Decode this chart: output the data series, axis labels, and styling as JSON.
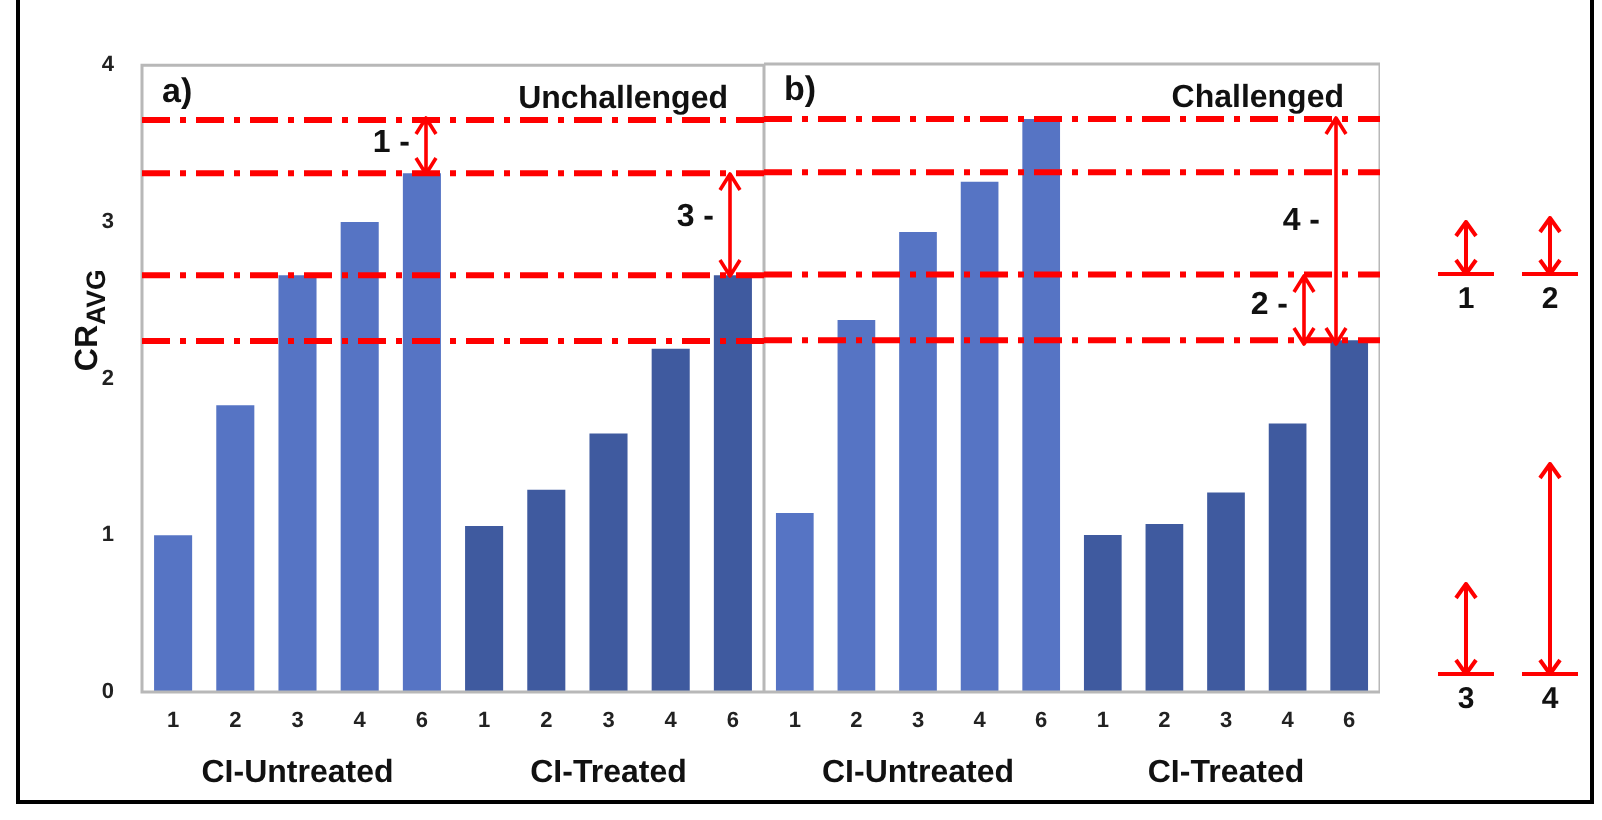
{
  "chart_data": [
    {
      "type": "bar",
      "title": "a)",
      "subtitle": "Unchallenged",
      "ylabel": "CR$_{AVG}$",
      "categories": [
        "1",
        "2",
        "3",
        "4",
        "6",
        "1",
        "2",
        "3",
        "4",
        "6"
      ],
      "values": [
        1.0,
        1.83,
        2.66,
        3.0,
        3.31,
        1.06,
        1.29,
        1.65,
        2.19,
        2.66
      ],
      "colors": [
        "#5674c4",
        "#5674c4",
        "#5674c4",
        "#5674c4",
        "#5674c4",
        "#3f5a9f",
        "#3f5a9f",
        "#3f5a9f",
        "#3f5a9f",
        "#3f5a9f"
      ],
      "ylim": [
        0,
        4
      ],
      "yticks": [
        0,
        1,
        2,
        3,
        4
      ],
      "ref_lines": [
        {
          "axis": "y",
          "value": 3.65,
          "color": "#ff0000",
          "line_style": "dashed"
        },
        {
          "axis": "y",
          "value": 3.31,
          "color": "#ff0000",
          "line_style": "dashed"
        },
        {
          "axis": "y",
          "value": 2.66,
          "color": "#ff0000",
          "line_style": "dashed"
        },
        {
          "axis": "y",
          "value": 2.24,
          "color": "#ff0000",
          "line_style": "dashed"
        }
      ],
      "annotations": [
        "CI-Untreated",
        "CI-Treated",
        "1 -",
        "3 -"
      ]
    },
    {
      "type": "bar",
      "title": "b)",
      "subtitle": "Challenged",
      "categories": [
        "1",
        "2",
        "3",
        "4",
        "6",
        "1",
        "2",
        "3",
        "4",
        "6"
      ],
      "values": [
        1.14,
        2.37,
        2.93,
        3.25,
        3.65,
        1.0,
        1.07,
        1.27,
        1.71,
        2.24
      ],
      "colors": [
        "#5674c4",
        "#5674c4",
        "#5674c4",
        "#5674c4",
        "#5674c4",
        "#3f5a9f",
        "#3f5a9f",
        "#3f5a9f",
        "#3f5a9f",
        "#3f5a9f"
      ],
      "ylim": [
        0,
        4
      ],
      "yticks": [
        0,
        1,
        2,
        3,
        4
      ],
      "tick_labels": "x",
      "ref_lines": [
        {
          "axis": "y",
          "value": 3.65,
          "color": "#ff0000",
          "line_style": "dashed"
        },
        {
          "axis": "y",
          "value": 3.31,
          "color": "#ff0000",
          "line_style": "dashed"
        },
        {
          "axis": "y",
          "value": 2.66,
          "color": "#ff0000",
          "line_style": "dashed"
        },
        {
          "axis": "y",
          "value": 2.24,
          "color": "#ff0000",
          "line_style": "dashed"
        }
      ],
      "annotations": [
        "CI-Untreated",
        "CI-Treated",
        "4 -",
        "2 -"
      ]
    },
    {
      "type": "other",
      "annotations": [
        "1",
        "2",
        "3",
        "4"
      ]
    }
  ]
}
